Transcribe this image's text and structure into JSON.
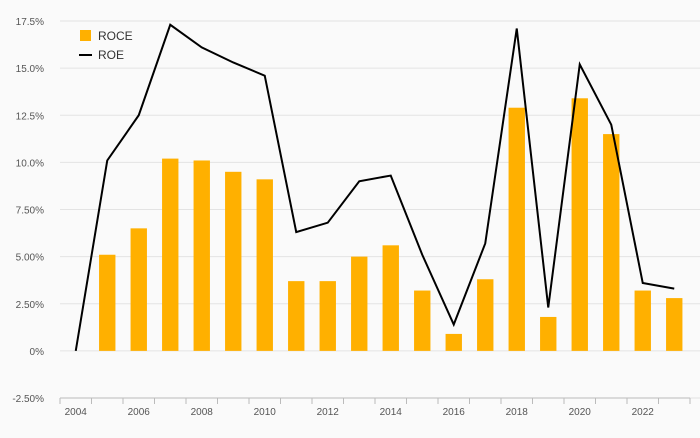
{
  "chart_data": {
    "type": "bar",
    "title": "",
    "xlabel": "",
    "ylabel": "",
    "ylim": [
      -2.5,
      17.5
    ],
    "grid": true,
    "legend_placement": "top-left",
    "y_ticks": [
      -2.5,
      0,
      2.5,
      5,
      7.5,
      10,
      12.5,
      15,
      17.5
    ],
    "y_tick_labels": [
      "-2.50%",
      "0%",
      "2.50%",
      "5.00%",
      "7.50%",
      "10.0%",
      "12.5%",
      "15.0%",
      "17.5%"
    ],
    "x_tick_labels": [
      "2004",
      "2006",
      "2008",
      "2010",
      "2012",
      "2014",
      "2016",
      "2018",
      "2020",
      "2022"
    ],
    "categories": [
      "2004",
      "2005",
      "2006",
      "2007",
      "2008",
      "2009",
      "2010",
      "2011",
      "2012",
      "2013",
      "2014",
      "2015",
      "2016",
      "2017",
      "2018",
      "2019",
      "2020",
      "2021",
      "2022",
      "2023"
    ],
    "series": [
      {
        "name": "ROCE",
        "type": "bar",
        "color": "#ffb000",
        "values": [
          null,
          5.1,
          6.5,
          10.2,
          10.1,
          9.5,
          9.1,
          3.7,
          3.7,
          5.0,
          5.6,
          3.2,
          0.9,
          3.8,
          12.9,
          1.8,
          13.4,
          11.5,
          3.2,
          2.8
        ]
      },
      {
        "name": "ROE",
        "type": "line",
        "color": "#000000",
        "values": [
          0,
          10.1,
          12.5,
          17.3,
          16.1,
          15.3,
          14.6,
          6.3,
          6.8,
          9.0,
          9.3,
          5.1,
          1.4,
          5.7,
          17.1,
          2.3,
          15.2,
          12.0,
          3.6,
          3.3
        ]
      }
    ]
  }
}
